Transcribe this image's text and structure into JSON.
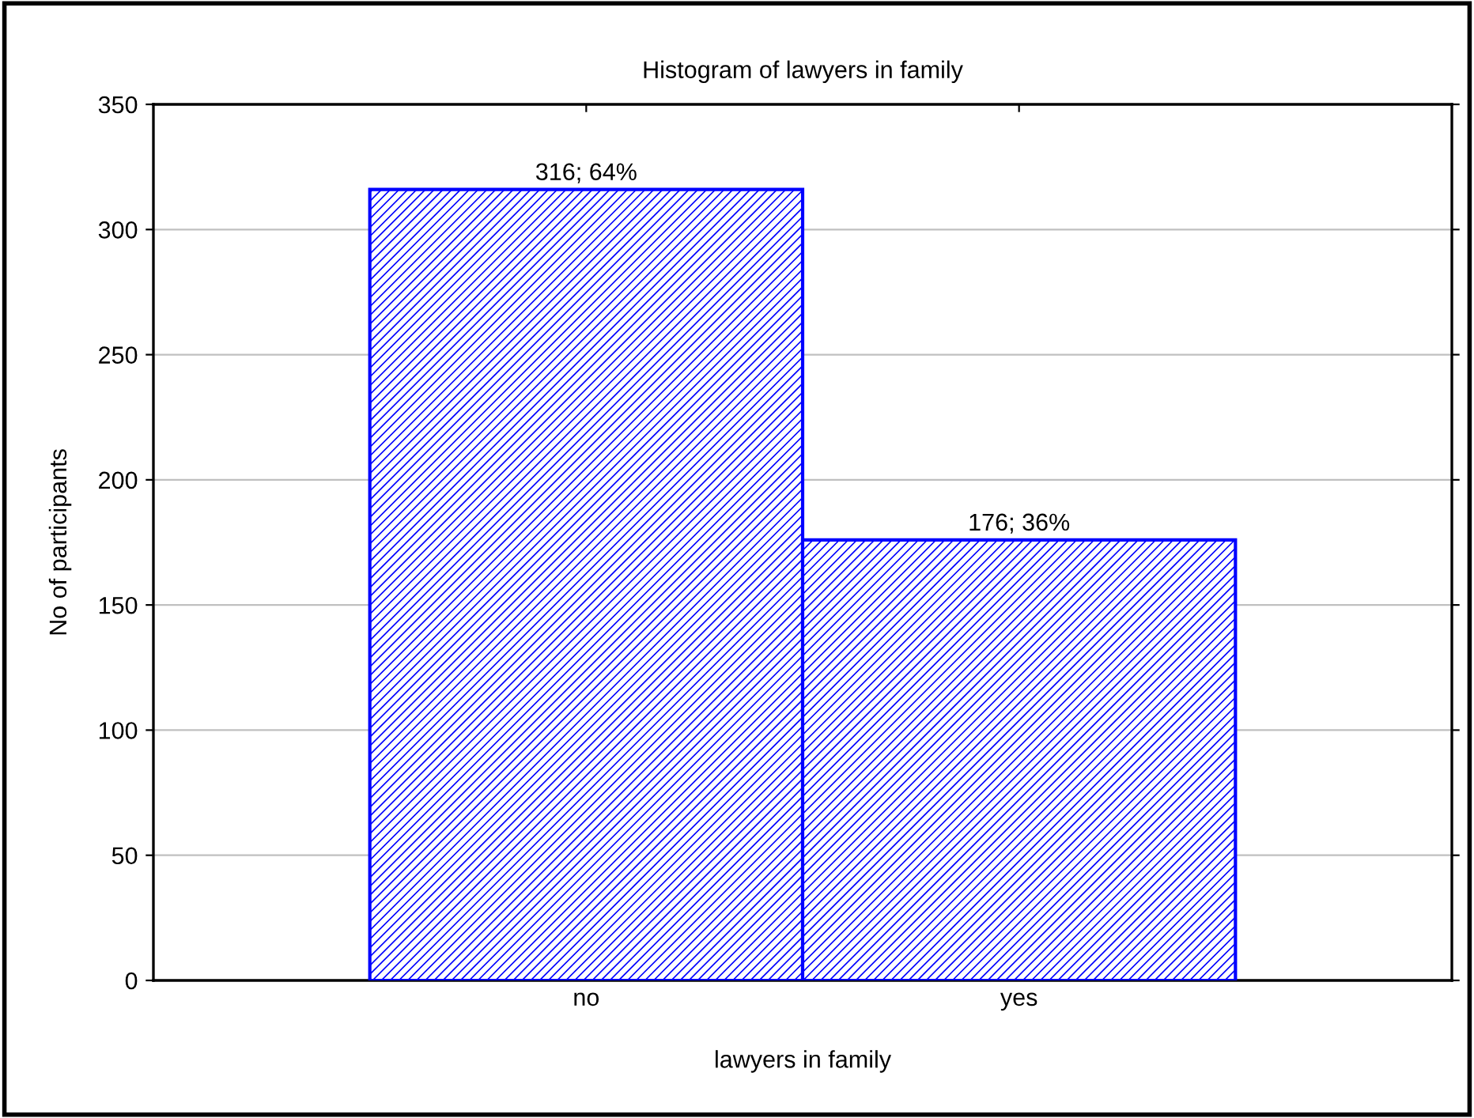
{
  "chart_data": {
    "type": "bar",
    "title": "Histogram of lawyers in family",
    "xlabel": "lawyers in family",
    "ylabel": "No of participants",
    "categories": [
      "no",
      "yes"
    ],
    "values": [
      316,
      176
    ],
    "value_labels": [
      "316; 64%",
      "176; 36%"
    ],
    "color": "#0000ff",
    "ylim": [
      0,
      350
    ],
    "yticks": [
      0,
      50,
      100,
      150,
      200,
      250,
      300,
      350
    ],
    "grid": "y"
  }
}
